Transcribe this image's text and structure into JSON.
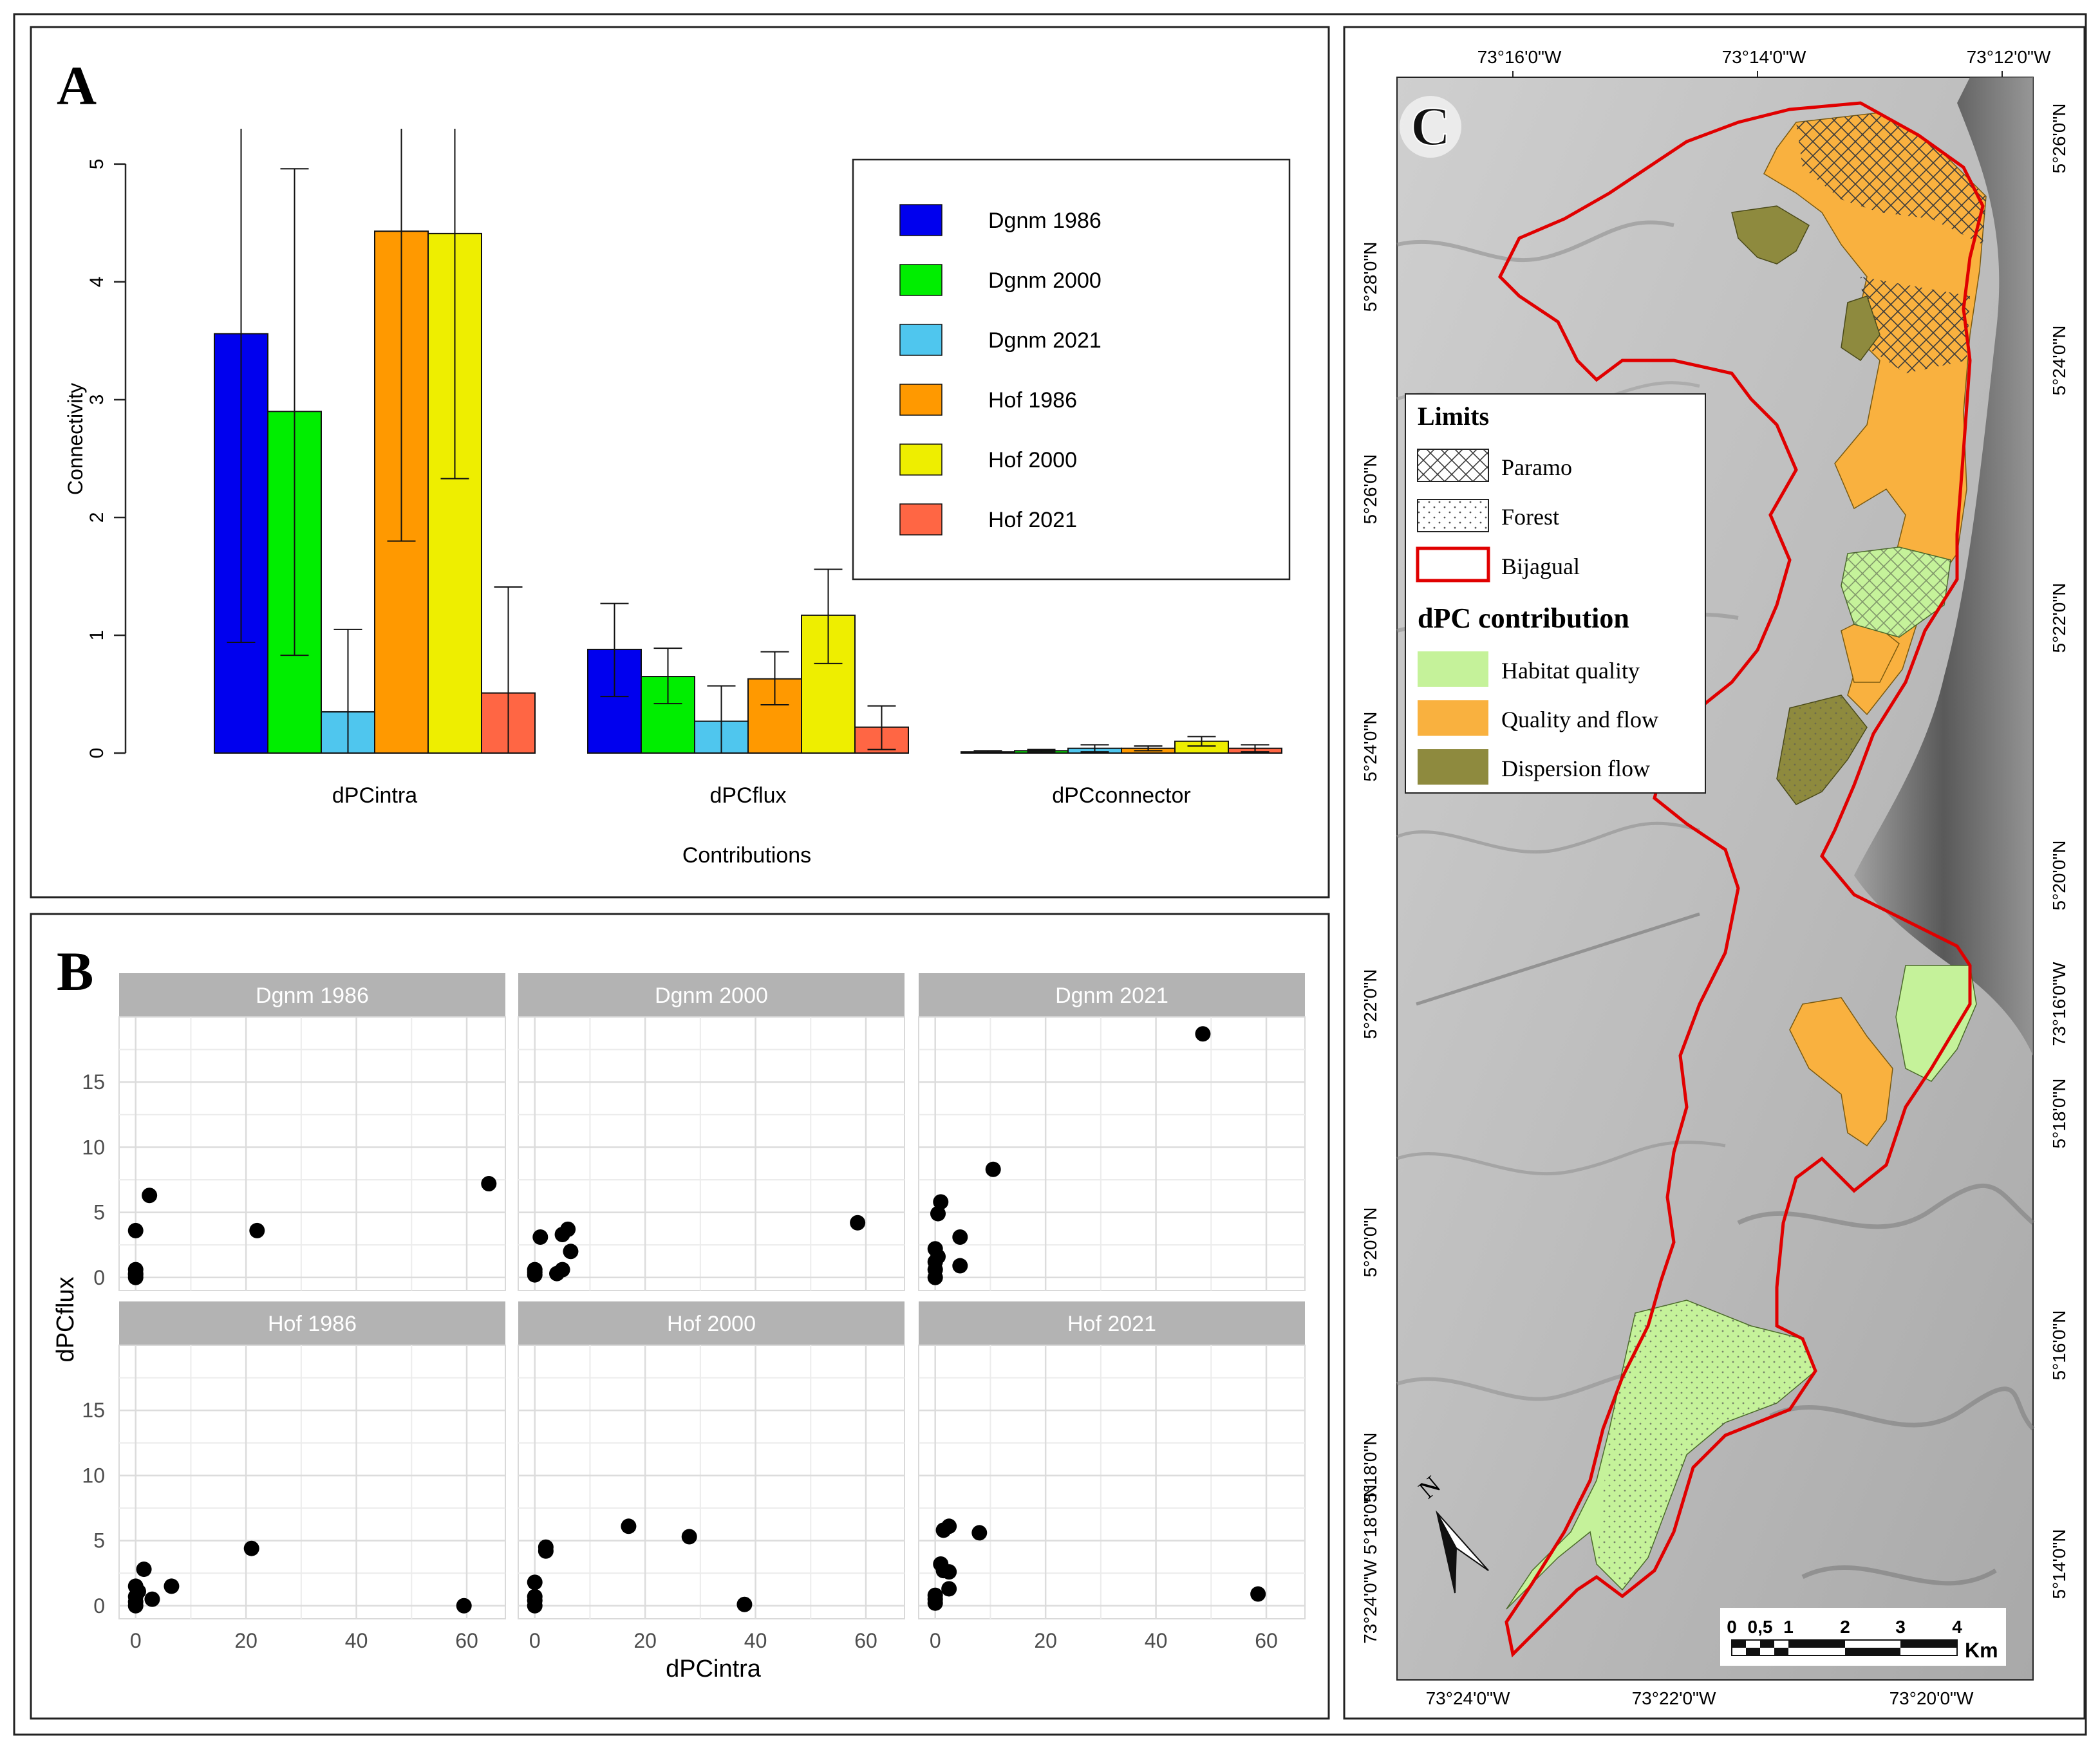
{
  "panels": {
    "a": {
      "letter": "A"
    },
    "b": {
      "letter": "B"
    },
    "c": {
      "letter": "C"
    }
  },
  "colors": {
    "Dgnm 1986": "#0000ee",
    "Dgnm 2000": "#00ee00",
    "Dgnm 2021": "#4fc6ee",
    "Hof 1986": "#ff9900",
    "Hof 2000": "#eeee00",
    "Hof 2021": "#ff6644"
  },
  "chart_data": [
    {
      "type": "bar",
      "panel": "A",
      "xlabel": "Contributions",
      "ylabel": "Connectivity",
      "ylim": [
        0,
        5.3
      ],
      "yticks": [
        0,
        1,
        2,
        3,
        4,
        5
      ],
      "categories": [
        "dPCintra",
        "dPCflux",
        "dPCconnector"
      ],
      "legend_position": "top-right",
      "series": [
        {
          "name": "Dgnm 1986",
          "values": [
            3.56,
            0.88,
            0.01
          ],
          "err_low": [
            0.94,
            0.48,
            0.0
          ],
          "err_high": [
            5.3,
            1.27,
            0.02
          ]
        },
        {
          "name": "Dgnm 2000",
          "values": [
            2.9,
            0.65,
            0.02
          ],
          "err_low": [
            0.83,
            0.42,
            0.01
          ],
          "err_high": [
            4.96,
            0.89,
            0.03
          ]
        },
        {
          "name": "Dgnm 2021",
          "values": [
            0.35,
            0.27,
            0.04
          ],
          "err_low": [
            0.0,
            0.0,
            0.01
          ],
          "err_high": [
            1.05,
            0.57,
            0.07
          ]
        },
        {
          "name": "Hof 1986",
          "values": [
            4.43,
            0.63,
            0.04
          ],
          "err_low": [
            1.8,
            0.41,
            0.02
          ],
          "err_high": [
            5.3,
            0.86,
            0.06
          ]
        },
        {
          "name": "Hof 2000",
          "values": [
            4.41,
            1.17,
            0.1
          ],
          "err_low": [
            2.33,
            0.76,
            0.06
          ],
          "err_high": [
            5.3,
            1.56,
            0.14
          ]
        },
        {
          "name": "Hof 2021",
          "values": [
            0.51,
            0.22,
            0.04
          ],
          "err_low": [
            0.0,
            0.03,
            0.01
          ],
          "err_high": [
            1.41,
            0.4,
            0.07
          ]
        }
      ]
    },
    {
      "type": "scatter",
      "panel": "B",
      "xlabel": "dPCintra",
      "ylabel": "dPCflux",
      "xlim": [
        -3,
        67
      ],
      "ylim": [
        -1,
        20
      ],
      "xticks": [
        0,
        20,
        40,
        60
      ],
      "yticks": [
        0,
        5,
        10,
        15
      ],
      "facets": [
        {
          "name": "Dgnm 1986",
          "points": [
            [
              0,
              0
            ],
            [
              0,
              0.3
            ],
            [
              0,
              0.6
            ],
            [
              0,
              0.2
            ],
            [
              0,
              3.6
            ],
            [
              2.5,
              6.3
            ],
            [
              22,
              3.6
            ],
            [
              64,
              7.2
            ]
          ]
        },
        {
          "name": "Dgnm 2000",
          "points": [
            [
              0,
              0.2
            ],
            [
              0,
              0.6
            ],
            [
              0,
              0.4
            ],
            [
              1,
              3.1
            ],
            [
              4,
              0.3
            ],
            [
              5,
              0.6
            ],
            [
              5,
              3.3
            ],
            [
              6,
              3.7
            ],
            [
              6.5,
              2
            ],
            [
              58.5,
              4.2
            ]
          ]
        },
        {
          "name": "Dgnm 2021",
          "points": [
            [
              0,
              0
            ],
            [
              0,
              0.6
            ],
            [
              0,
              1.2
            ],
            [
              0,
              2.2
            ],
            [
              0.5,
              1.6
            ],
            [
              0.5,
              4.9
            ],
            [
              1,
              5.8
            ],
            [
              4.5,
              3.1
            ],
            [
              4.5,
              0.9
            ],
            [
              10.5,
              8.3
            ],
            [
              48.5,
              18.7
            ]
          ]
        },
        {
          "name": "Hof 1986",
          "points": [
            [
              0,
              0
            ],
            [
              0,
              0.3
            ],
            [
              0,
              0.7
            ],
            [
              0,
              1.5
            ],
            [
              0.5,
              1.1
            ],
            [
              1.5,
              2.8
            ],
            [
              3,
              0.5
            ],
            [
              6.5,
              1.5
            ],
            [
              21,
              4.4
            ],
            [
              59.5,
              0
            ]
          ]
        },
        {
          "name": "Hof 2000",
          "points": [
            [
              0,
              0
            ],
            [
              0,
              0.4
            ],
            [
              0,
              0.7
            ],
            [
              0,
              1.8
            ],
            [
              2,
              4.5
            ],
            [
              2,
              4.2
            ],
            [
              17,
              6.1
            ],
            [
              28,
              5.3
            ],
            [
              38,
              0.1
            ]
          ]
        },
        {
          "name": "Hof 2021",
          "points": [
            [
              0,
              0.2
            ],
            [
              0,
              0.5
            ],
            [
              0,
              0.8
            ],
            [
              1,
              3.2
            ],
            [
              1.5,
              2.7
            ],
            [
              2.5,
              2.6
            ],
            [
              1.5,
              5.8
            ],
            [
              2.5,
              6.1
            ],
            [
              2.5,
              1.3
            ],
            [
              8,
              5.6
            ],
            [
              58.5,
              0.9
            ]
          ]
        }
      ]
    }
  ],
  "map": {
    "top_axis_labels": [
      "73°16'0\"W",
      "73°14'0\"W",
      "73°12'0\"W"
    ],
    "bottom_axis_labels": [
      "73°24'0\"W",
      "73°22'0\"W",
      "73°20'0\"W"
    ],
    "left_axis_labels": [
      "5°28'0\"N",
      "5°26'0\"N",
      "5°24'0\"N",
      "5°22'0\"N",
      "5°20'0\"N",
      "5°18'0\"N",
      "73°24'0\"W 5°18'0\"N"
    ],
    "right_axis_labels": [
      "5°26'0\"N",
      "5°24'0\"N",
      "5°22'0\"N",
      "5°20'0\"N",
      "73°16'0\"W",
      "5°18'0\"N",
      "5°16'0\"N",
      "5°14'0\"N"
    ],
    "legend": {
      "limits_title": "Limits",
      "limits": [
        "Paramo",
        "Forest",
        "Bijagual"
      ],
      "dpc_title": "dPC contribution",
      "dpc": [
        {
          "label": "Habitat quality",
          "color": "#c5f29a"
        },
        {
          "label": "Quality and flow",
          "color": "#f9b13f"
        },
        {
          "label": "Dispersion flow",
          "color": "#8e8a3e"
        }
      ]
    },
    "north_label": "N",
    "scale_ticks": [
      "0",
      "0,5",
      "1",
      "2",
      "3",
      "4"
    ],
    "scale_unit": "Km"
  }
}
